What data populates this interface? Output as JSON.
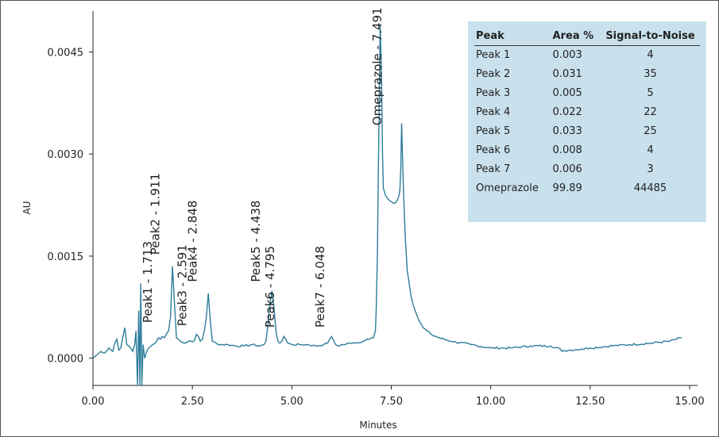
{
  "chart_data": {
    "type": "line",
    "xlabel": "Minutes",
    "ylabel": "AU",
    "xlim": [
      0.0,
      15.2
    ],
    "ylim": [
      -0.0004,
      0.0051
    ],
    "x_ticks": [
      "0.00",
      "2.50",
      "5.00",
      "7.50",
      "10.00",
      "12.50",
      "15.00"
    ],
    "x_tick_values": [
      0.0,
      2.5,
      5.0,
      7.5,
      10.0,
      12.5,
      15.0
    ],
    "y_ticks": [
      "0.0000",
      "0.0015",
      "0.0030",
      "0.0045"
    ],
    "y_tick_values": [
      0.0,
      0.0015,
      0.003,
      0.0045
    ],
    "line_color": "#2e7d9a",
    "series": [
      {
        "x": [
          0.0,
          0.1,
          0.2,
          0.3,
          0.4,
          0.5,
          0.55,
          0.6,
          0.65,
          0.7,
          0.75,
          0.8,
          0.85,
          0.9,
          0.95,
          1.0,
          1.05,
          1.08,
          1.12,
          1.15,
          1.18,
          1.2,
          1.23,
          1.26,
          1.3,
          1.35,
          1.4,
          1.5,
          1.6,
          1.65,
          1.7,
          1.75,
          1.8,
          1.9,
          1.95,
          2.0,
          2.05,
          2.1,
          2.2,
          2.3,
          2.4,
          2.5,
          2.55,
          2.6,
          2.65,
          2.7,
          2.75,
          2.8,
          2.85,
          2.9,
          2.95,
          3.0,
          3.1,
          3.2,
          3.4,
          3.6,
          3.8,
          4.0,
          4.2,
          4.3,
          4.35,
          4.4,
          4.45,
          4.5,
          4.55,
          4.6,
          4.65,
          4.7,
          4.75,
          4.8,
          4.85,
          4.9,
          5.0,
          5.2,
          5.4,
          5.6,
          5.8,
          5.9,
          5.95,
          6.0,
          6.05,
          6.1,
          6.2,
          6.4,
          6.6,
          6.8,
          6.9,
          7.0,
          7.05,
          7.1,
          7.12,
          7.15,
          7.18,
          7.22,
          7.25,
          7.28,
          7.3,
          7.35,
          7.4,
          7.45,
          7.5,
          7.55,
          7.6,
          7.65,
          7.7,
          7.72,
          7.74,
          7.76,
          7.8,
          7.85,
          7.9,
          8.0,
          8.1,
          8.2,
          8.3,
          8.4,
          8.5,
          8.7,
          9.0,
          9.5,
          10.0,
          10.5,
          11.0,
          11.5,
          11.7,
          11.8,
          12.0,
          12.5,
          13.0,
          13.5,
          14.0,
          14.5,
          14.8
        ],
        "y": [
          0.0,
          5e-05,
          0.0001,
          8e-05,
          0.00015,
          0.0001,
          0.00022,
          0.00028,
          0.00012,
          0.00015,
          0.0003,
          0.00045,
          0.0002,
          0.00018,
          0.00015,
          0.0001,
          0.0002,
          0.0004,
          -0.0004,
          0.0007,
          -0.0004,
          0.0011,
          -0.0004,
          0.0002,
          0.0,
          0.0001,
          0.00015,
          0.0002,
          0.00025,
          0.0003,
          0.00028,
          0.00032,
          0.0003,
          0.0004,
          0.0006,
          0.00135,
          0.0008,
          0.0003,
          0.00025,
          0.00022,
          0.00025,
          0.00024,
          0.00026,
          0.00035,
          0.00032,
          0.00025,
          0.00028,
          0.0004,
          0.0006,
          0.00095,
          0.00055,
          0.00025,
          0.00022,
          0.0002,
          0.0002,
          0.00018,
          0.00018,
          0.0002,
          0.00018,
          0.0002,
          0.00025,
          0.0005,
          0.0008,
          0.00099,
          0.00075,
          0.0004,
          0.00025,
          0.00022,
          0.00025,
          0.00032,
          0.00028,
          0.00022,
          0.0002,
          0.0002,
          0.0002,
          0.00018,
          0.0002,
          0.00022,
          0.00028,
          0.00032,
          0.00026,
          0.0002,
          0.00018,
          0.00022,
          0.00022,
          0.00025,
          0.00028,
          0.0003,
          0.0003,
          0.0004,
          0.0007,
          0.0015,
          0.003,
          0.0049,
          0.0043,
          0.003,
          0.0025,
          0.0024,
          0.00235,
          0.00232,
          0.0023,
          0.00228,
          0.00228,
          0.00232,
          0.0024,
          0.0025,
          0.0028,
          0.00345,
          0.0026,
          0.0018,
          0.0013,
          0.0009,
          0.0007,
          0.00055,
          0.00045,
          0.0004,
          0.00035,
          0.0003,
          0.00025,
          0.0002,
          0.00015,
          0.00015,
          0.00018,
          0.00018,
          0.00015,
          0.0001,
          0.00012,
          0.00015,
          0.00018,
          0.0002,
          0.00022,
          0.00025,
          0.0003
        ]
      }
    ],
    "peak_labels": [
      {
        "text": "Peak1 - 1.713",
        "x": 1.713,
        "y": 0.00045
      },
      {
        "text": "Peak2 - 1.911",
        "x": 1.911,
        "y": 0.00145
      },
      {
        "text": "Peak3 - 2.591",
        "x": 2.591,
        "y": 0.0004
      },
      {
        "text": "Peak4 - 2.848",
        "x": 2.848,
        "y": 0.00105
      },
      {
        "text": "Peak5 - 4.438",
        "x": 4.438,
        "y": 0.00105
      },
      {
        "text": "Peak6 - 4.795",
        "x": 4.795,
        "y": 0.00038
      },
      {
        "text": "Peak7 - 6.048",
        "x": 6.048,
        "y": 0.00038
      },
      {
        "text": "Omeprazole - 7.491",
        "x": 7.491,
        "y": 0.00335
      }
    ]
  },
  "table": {
    "headers": [
      "Peak",
      "Area %",
      "Signal-to-Noise"
    ],
    "rows": [
      [
        "Peak 1",
        "0.003",
        "4"
      ],
      [
        "Peak 2",
        "0.031",
        "35"
      ],
      [
        "Peak 3",
        "0.005",
        "5"
      ],
      [
        "Peak 4",
        "0.022",
        "22"
      ],
      [
        "Peak 5",
        "0.033",
        "25"
      ],
      [
        "Peak 6",
        "0.008",
        "4"
      ],
      [
        "Peak 7",
        "0.006",
        "3"
      ],
      [
        "Omeprazole",
        "99.89",
        "44485"
      ]
    ],
    "background": "#c9e1ed"
  }
}
